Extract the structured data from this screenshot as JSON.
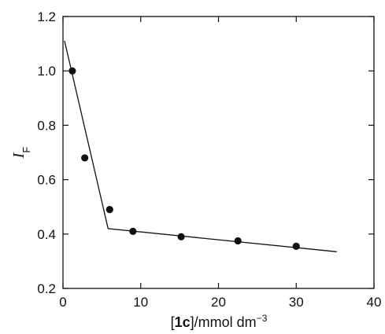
{
  "chart_data": {
    "type": "scatter",
    "title": "",
    "xlabel": {
      "bracket_open": "[",
      "compound": "1c",
      "bracket_close": "]",
      "unit": "/mmol dm",
      "exponent": "−3"
    },
    "ylabel": {
      "symbol": "I",
      "subscript": "F"
    },
    "xlim": [
      0,
      40
    ],
    "ylim": [
      0.2,
      1.2
    ],
    "xticks": [
      0,
      10,
      20,
      30,
      40
    ],
    "xtick_labels": [
      "0",
      "10",
      "20",
      "30",
      "40"
    ],
    "yticks": [
      0.2,
      0.4,
      0.6,
      0.8,
      1.0,
      1.2
    ],
    "ytick_labels": [
      "0.2",
      "0.4",
      "0.6",
      "0.8",
      "1.0",
      "1.2"
    ],
    "grid": false,
    "series": [
      {
        "type": "scatter",
        "x": [
          1.2,
          2.8,
          6.0,
          9.0,
          15.2,
          22.5,
          30.0
        ],
        "y": [
          1.0,
          0.68,
          0.49,
          0.41,
          0.39,
          0.375,
          0.355
        ]
      },
      {
        "type": "line",
        "x": [
          0.2,
          5.8,
          35.2
        ],
        "y": [
          1.11,
          0.42,
          0.335
        ]
      }
    ]
  }
}
